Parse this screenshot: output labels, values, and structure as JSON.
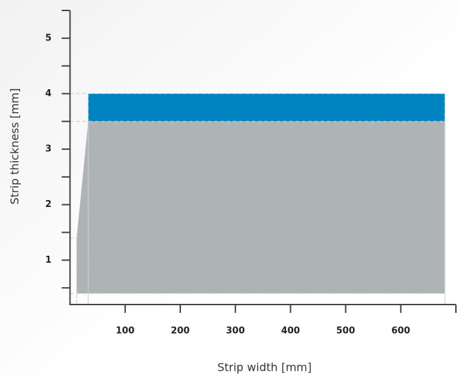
{
  "chart_data": {
    "type": "area",
    "x_label": "Strip width [mm]",
    "y_label": "Strip thickness [mm]",
    "xlim": [
      0,
      700
    ],
    "ylim": [
      0.2,
      5.5
    ],
    "xticks": [
      100,
      200,
      300,
      400,
      500,
      600
    ],
    "yticks": [
      1,
      2,
      3,
      4,
      5
    ],
    "yminorticks": [
      0.5,
      1.5,
      2.5,
      3.5,
      4.5
    ],
    "areas": [
      {
        "color": "#aeb3b6",
        "x": [
          12,
          12,
          33,
          680,
          680
        ],
        "y": [
          0.4,
          1.4,
          3.5,
          3.5,
          0.4
        ]
      },
      {
        "color": "#0083c1",
        "x": [
          33,
          33,
          680,
          680
        ],
        "y": [
          3.5,
          4,
          4,
          3.5
        ]
      }
    ]
  }
}
